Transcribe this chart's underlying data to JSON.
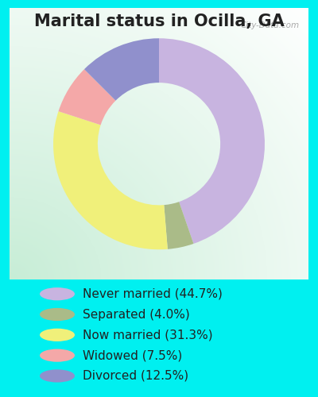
{
  "title": "Marital status in Ocilla, GA",
  "slices": [
    44.7,
    4.0,
    31.3,
    7.5,
    12.5
  ],
  "labels": [
    "Never married (44.7%)",
    "Separated (4.0%)",
    "Now married (31.3%)",
    "Widowed (7.5%)",
    "Divorced (12.5%)"
  ],
  "colors": [
    "#c8b4e0",
    "#aabb88",
    "#f0f07a",
    "#f4a8a8",
    "#9090cc"
  ],
  "start_angle": 90,
  "title_fontsize": 15,
  "legend_fontsize": 11,
  "bg_cyan": "#00f0f0",
  "watermark": "City-Data.com",
  "donut_width": 0.42
}
